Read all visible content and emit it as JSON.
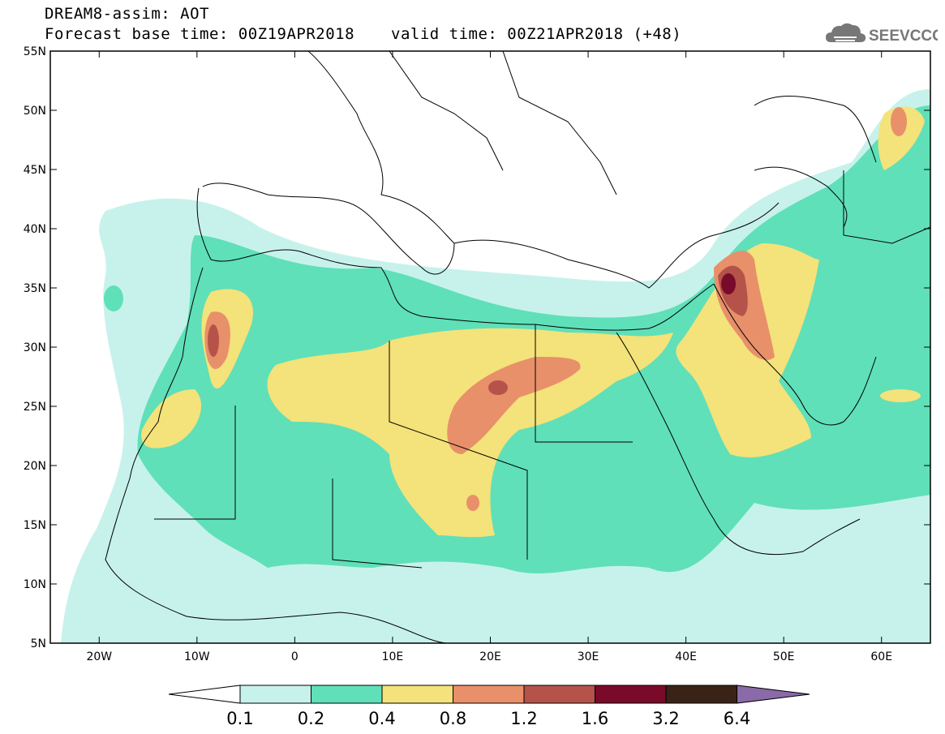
{
  "header": {
    "title": "DREAM8-assim: AOT",
    "base_time": "Forecast base time: 00Z19APR2018",
    "valid_time": "valid time: 00Z21APR2018 (+48)"
  },
  "logo": {
    "text": "SEEVCCC",
    "icon": "cloud-icon"
  },
  "map": {
    "lon_range": [
      -25,
      65
    ],
    "lat_range": [
      5,
      55
    ],
    "lat_labels": [
      "55N",
      "50N",
      "45N",
      "40N",
      "35N",
      "30N",
      "25N",
      "20N",
      "15N",
      "10N",
      "5N"
    ],
    "lon_labels": [
      "20W",
      "10W",
      "0",
      "10E",
      "20E",
      "30E",
      "40E",
      "50E",
      "60E"
    ]
  },
  "colorbar": {
    "levels": [
      "0.1",
      "0.2",
      "0.4",
      "0.8",
      "1.2",
      "1.6",
      "3.2",
      "6.4"
    ],
    "colors": [
      "#c7f2ec",
      "#5fe0b8",
      "#f4e27a",
      "#e8906a",
      "#b5534a",
      "#7a0a2a",
      "#3a2216",
      "#8a6aa8"
    ]
  },
  "chart_data": {
    "type": "heatmap",
    "title": "DREAM8-assim: AOT",
    "subtitle": "Forecast base time: 00Z19APR2018 valid time: 00Z21APR2018 (+48)",
    "x_range": [
      -25,
      65
    ],
    "y_range": [
      5,
      55
    ],
    "x_ticks": [
      "20W",
      "10W",
      "0",
      "10E",
      "20E",
      "30E",
      "40E",
      "50E",
      "60E"
    ],
    "y_ticks": [
      "55N",
      "50N",
      "45N",
      "40N",
      "35N",
      "30N",
      "25N",
      "20N",
      "15N",
      "10N",
      "5N"
    ],
    "levels": [
      0.1,
      0.2,
      0.4,
      0.8,
      1.2,
      1.6,
      3.2,
      6.4
    ],
    "grid": false
  }
}
